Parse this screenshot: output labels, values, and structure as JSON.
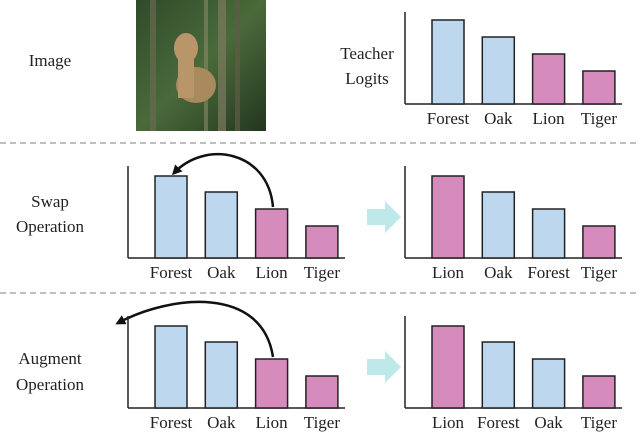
{
  "image_label": "Image",
  "teacher": {
    "label": [
      "Teacher",
      "Logits"
    ],
    "categories": [
      "Forest",
      "Oak",
      "Lion",
      "Tiger"
    ],
    "values": [
      84,
      67,
      50,
      33
    ],
    "colors": [
      "#bdd7ee",
      "#bdd7ee",
      "#d68bbd",
      "#d68bbd"
    ]
  },
  "swap": {
    "label": [
      "Swap",
      "Operation"
    ],
    "before": {
      "categories": [
        "Forest",
        "Oak",
        "Lion",
        "Tiger"
      ],
      "values": [
        82,
        66,
        49,
        32
      ],
      "colors": [
        "#bdd7ee",
        "#bdd7ee",
        "#d68bbd",
        "#d68bbd"
      ]
    },
    "after": {
      "categories": [
        "Lion",
        "Oak",
        "Forest",
        "Tiger"
      ],
      "values": [
        82,
        66,
        49,
        32
      ],
      "colors": [
        "#d68bbd",
        "#bdd7ee",
        "#bdd7ee",
        "#d68bbd"
      ]
    }
  },
  "augment": {
    "label": [
      "Augment",
      "Operation"
    ],
    "before": {
      "categories": [
        "Forest",
        "Oak",
        "Lion",
        "Tiger"
      ],
      "values": [
        82,
        66,
        49,
        32
      ],
      "colors": [
        "#bdd7ee",
        "#bdd7ee",
        "#d68bbd",
        "#d68bbd"
      ]
    },
    "after": {
      "categories": [
        "Lion",
        "Forest",
        "Oak",
        "Tiger"
      ],
      "values": [
        82,
        66,
        49,
        32
      ],
      "colors": [
        "#d68bbd",
        "#bdd7ee",
        "#bdd7ee",
        "#d68bbd"
      ]
    }
  }
}
